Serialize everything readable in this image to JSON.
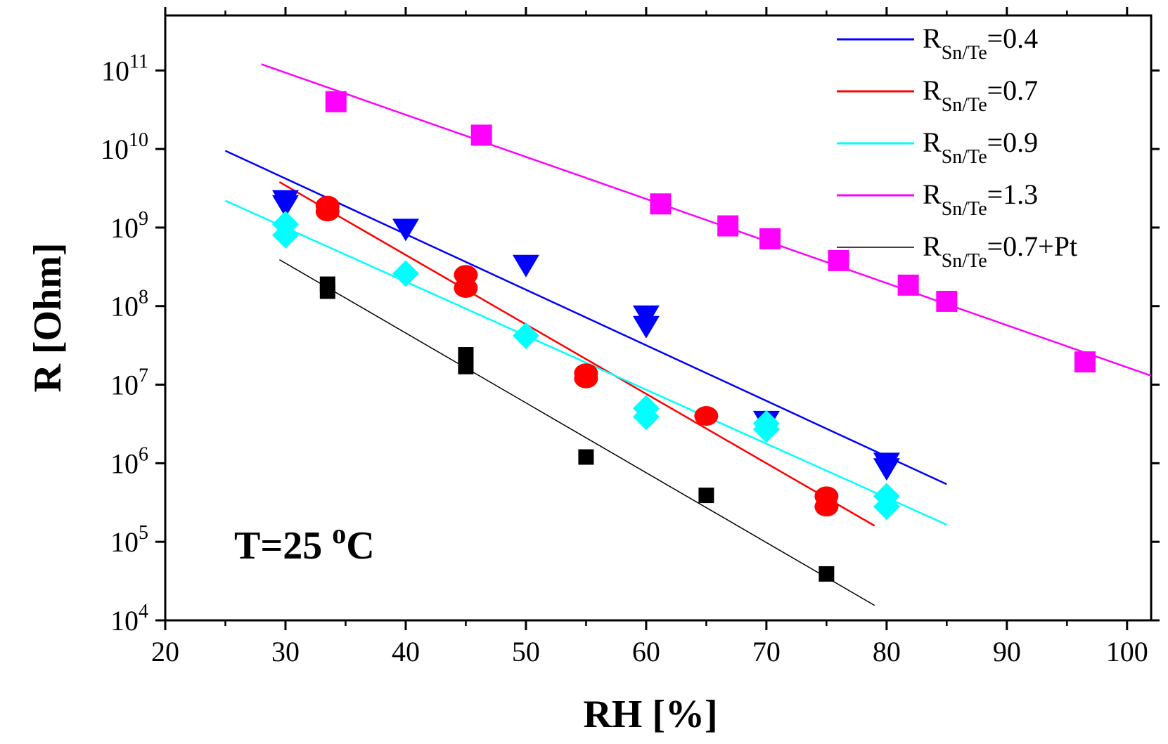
{
  "chart_data": {
    "type": "scatter",
    "title": "",
    "xlabel": "RH [%]",
    "ylabel": "R [Ohm]",
    "xlim": [
      20,
      102
    ],
    "ylim_exponent": [
      4,
      11.7
    ],
    "yscale": "log",
    "x_ticks": [
      "20",
      "30",
      "40",
      "50",
      "60",
      "70",
      "80",
      "90",
      "100"
    ],
    "y_ticks": [
      {
        "base": "10",
        "exp": "4"
      },
      {
        "base": "10",
        "exp": "5"
      },
      {
        "base": "10",
        "exp": "6"
      },
      {
        "base": "10",
        "exp": "7"
      },
      {
        "base": "10",
        "exp": "8"
      },
      {
        "base": "10",
        "exp": "9"
      },
      {
        "base": "10",
        "exp": "10"
      },
      {
        "base": "10",
        "exp": "11"
      }
    ],
    "annotation": {
      "main": "T=25 ",
      "sup": "o",
      "unit": "C"
    },
    "series": [
      {
        "name": "R_Sn/Te=0.4",
        "legend_main": "R",
        "legend_sub": "Sn/Te",
        "legend_value": "=0.4",
        "color": "#0000ff",
        "marker": "triangle-down",
        "points": [
          [
            30,
            2200000000.0
          ],
          [
            30,
            1900000000.0
          ],
          [
            40,
            950000000.0
          ],
          [
            50,
            330000000.0
          ],
          [
            60,
            75000000.0
          ],
          [
            60,
            55000000.0
          ],
          [
            70,
            3400000.0
          ],
          [
            80,
            1000000.0
          ],
          [
            80,
            850000.0
          ]
        ],
        "fit": [
          [
            25,
            9500000000.0
          ],
          [
            85,
            540000.0
          ]
        ]
      },
      {
        "name": "R_Sn/Te=0.7",
        "legend_main": "R",
        "legend_sub": "Sn/Te",
        "legend_value": "=0.7",
        "color": "#ff0000",
        "marker": "circle",
        "points": [
          [
            33.5,
            1900000000.0
          ],
          [
            33.5,
            1600000000.0
          ],
          [
            45,
            250000000.0
          ],
          [
            45,
            170000000.0
          ],
          [
            55,
            14000000.0
          ],
          [
            55,
            12000000.0
          ],
          [
            65,
            4000000.0
          ],
          [
            75,
            380000.0
          ],
          [
            75,
            280000.0
          ]
        ],
        "fit": [
          [
            29.5,
            3800000000.0
          ],
          [
            79,
            160000.0
          ]
        ]
      },
      {
        "name": "R_Sn/Te=0.9",
        "legend_main": "R",
        "legend_sub": "Sn/Te",
        "legend_value": "=0.9",
        "color": "#00ffff",
        "marker": "diamond",
        "points": [
          [
            30,
            1100000000.0
          ],
          [
            30,
            800000000.0
          ],
          [
            40,
            260000000.0
          ],
          [
            50,
            42000000.0
          ],
          [
            60,
            5000000.0
          ],
          [
            60,
            3900000.0
          ],
          [
            70,
            3200000.0
          ],
          [
            70,
            2700000.0
          ],
          [
            80,
            380000.0
          ],
          [
            80,
            280000.0
          ]
        ],
        "fit": [
          [
            25,
            2200000000.0
          ],
          [
            85,
            165000.0
          ]
        ]
      },
      {
        "name": "R_Sn/Te=1.3",
        "legend_main": "R",
        "legend_sub": "Sn/Te",
        "legend_value": "=1.3",
        "color": "#ff00ff",
        "marker": "square",
        "points": [
          [
            34.2,
            40000000000.0
          ],
          [
            46.3,
            15000000000.0
          ],
          [
            61.2,
            2000000000.0
          ],
          [
            66.8,
            1050000000.0
          ],
          [
            70.3,
            720000000.0
          ],
          [
            76,
            380000000.0
          ],
          [
            81.8,
            185000000.0
          ],
          [
            85,
            115000000.0
          ],
          [
            96.5,
            19500000.0
          ]
        ],
        "fit": [
          [
            28,
            120000000000.0
          ],
          [
            102,
            13000000.0
          ]
        ]
      },
      {
        "name": "R_Sn/Te=0.7+Pt",
        "legend_main": "R",
        "legend_sub": "Sn/Te",
        "legend_value": "=0.7+Pt",
        "color": "#000000",
        "marker": "small-square",
        "points": [
          [
            33.5,
            190000000.0
          ],
          [
            33.5,
            155000000.0
          ],
          [
            45,
            24000000.0
          ],
          [
            45,
            17000000.0
          ],
          [
            55,
            1200000.0
          ],
          [
            65,
            390000.0
          ],
          [
            75,
            39000.0
          ]
        ],
        "fit": [
          [
            29.5,
            390000000.0
          ],
          [
            79,
            15500.0
          ]
        ]
      }
    ]
  }
}
